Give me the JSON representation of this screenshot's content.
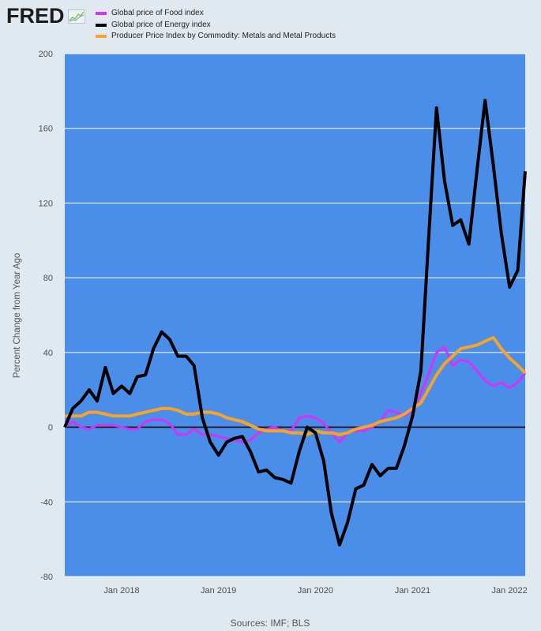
{
  "logo": {
    "text": "FRED",
    "icon": "line-graph-icon"
  },
  "chart_data": {
    "type": "line",
    "plot_background": "#4a8eea",
    "x": [
      "2017-06",
      "2017-07",
      "2017-08",
      "2017-09",
      "2017-10",
      "2017-11",
      "2017-12",
      "2018-01",
      "2018-02",
      "2018-03",
      "2018-04",
      "2018-05",
      "2018-06",
      "2018-07",
      "2018-08",
      "2018-09",
      "2018-10",
      "2018-11",
      "2018-12",
      "2019-01",
      "2019-02",
      "2019-03",
      "2019-04",
      "2019-05",
      "2019-06",
      "2019-07",
      "2019-08",
      "2019-09",
      "2019-10",
      "2019-11",
      "2019-12",
      "2020-01",
      "2020-02",
      "2020-03",
      "2020-04",
      "2020-05",
      "2020-06",
      "2020-07",
      "2020-08",
      "2020-09",
      "2020-10",
      "2020-11",
      "2020-12",
      "2021-01",
      "2021-02",
      "2021-03",
      "2021-04",
      "2021-05",
      "2021-06",
      "2021-07",
      "2021-08",
      "2021-09",
      "2021-10",
      "2021-11",
      "2021-12",
      "2022-01",
      "2022-02",
      "2022-03"
    ],
    "series": [
      {
        "name": "Global price of Food index",
        "color": "#d233f5",
        "values": [
          0,
          3,
          0,
          -1,
          1,
          1,
          1,
          0,
          -1,
          -1,
          3,
          4,
          4,
          2,
          -4,
          -4,
          -1,
          -4,
          -4,
          -5,
          -6,
          -7,
          -8,
          -7,
          -3,
          -1,
          0,
          -2,
          -2,
          5,
          6,
          5,
          2,
          -3,
          -8,
          -3,
          -2,
          -2,
          0,
          3,
          9,
          8,
          6,
          9,
          18,
          28,
          40,
          43,
          33,
          36,
          35,
          30,
          25,
          22,
          24,
          21,
          24,
          29
        ]
      },
      {
        "name": "Global price of Energy index",
        "color": "#000000",
        "values": [
          0,
          10,
          14,
          20,
          14,
          32,
          18,
          22,
          18,
          27,
          28,
          42,
          51,
          47,
          38,
          38,
          33,
          5,
          -8,
          -15,
          -8,
          -6,
          -5,
          -13,
          -24,
          -23,
          -27,
          -28,
          -30,
          -13,
          0,
          -3,
          -18,
          -46,
          -63,
          -51,
          -33,
          -31,
          -20,
          -26,
          -22,
          -22,
          -10,
          6,
          30,
          98,
          171,
          132,
          108,
          111,
          98,
          138,
          175,
          140,
          104,
          75,
          84,
          137
        ]
      },
      {
        "name": "Producer Price Index by Commodity: Metals and Metal Products",
        "color": "#f6a32a",
        "values": [
          6,
          6,
          6,
          8,
          8,
          7,
          6,
          6,
          6,
          7,
          8,
          9,
          10,
          10,
          9,
          7,
          7,
          8,
          8,
          7,
          5,
          4,
          3,
          1,
          -1,
          -2,
          -2,
          -2,
          -3,
          -3,
          -4,
          -2,
          -3,
          -3,
          -4,
          -3,
          -1,
          0,
          1,
          3,
          4,
          5,
          7,
          10,
          13,
          20,
          28,
          34,
          38,
          42,
          43,
          44,
          46,
          48,
          42,
          37,
          33,
          29
        ]
      }
    ],
    "ylabel": "Percent Change from Year Ago",
    "ylim": [
      -80,
      200
    ],
    "yticks": [
      200,
      160,
      120,
      80,
      40,
      0,
      -40,
      -80
    ],
    "xtick_labels": [
      "Jan 2018",
      "Jan 2019",
      "Jan 2020",
      "Jan 2021",
      "Jan 2022"
    ],
    "grid": true,
    "zero_line": true,
    "legend_position": "top-left",
    "source": "Sources: IMF; BLS"
  }
}
